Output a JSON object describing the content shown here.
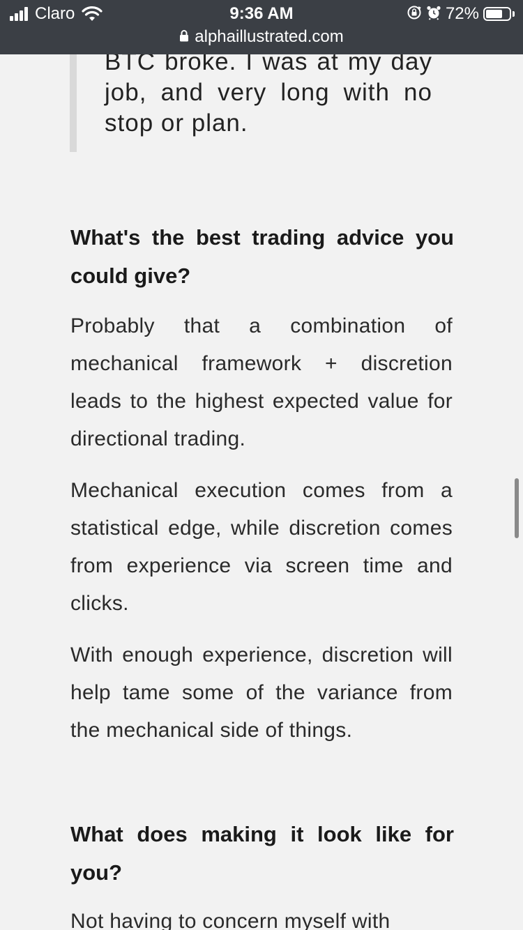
{
  "status_bar": {
    "carrier": "Claro",
    "time": "9:36 AM",
    "battery_percent": "72%",
    "battery_level": 0.72
  },
  "url_bar": {
    "domain": "alphaillustrated.com"
  },
  "article": {
    "quote_text": "BTC broke. I was at my day job, and very long with no stop or plan.",
    "sections": [
      {
        "heading": "What's the best trading advice you could give?",
        "paragraphs": [
          "Probably that a combination of mechanical framework + discretion leads to the highest expected value for directional trading.",
          "Mechanical execution comes from a statistical edge, while discretion comes from experience via screen time and clicks.",
          "With enough experience, discretion will help tame some of the variance from the mechanical side of things."
        ]
      },
      {
        "heading": "What does making it look like for you?",
        "paragraphs": [
          "Not having to concern myself with"
        ]
      }
    ]
  }
}
